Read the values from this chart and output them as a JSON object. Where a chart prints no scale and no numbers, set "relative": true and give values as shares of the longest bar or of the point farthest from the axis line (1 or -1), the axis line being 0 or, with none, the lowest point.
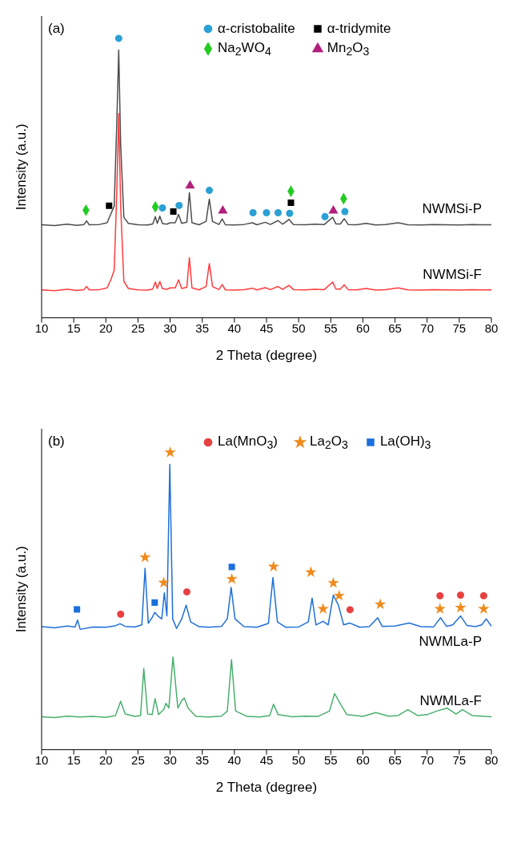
{
  "chart_data": [
    {
      "type": "line",
      "relative": true,
      "xlabel": "2 Theta (degree)",
      "ylabel": "Intensity (a.u.)",
      "annotations": [
        "(a)"
      ],
      "xlim": [
        10,
        80
      ],
      "xticks": [
        10,
        15,
        20,
        25,
        30,
        35,
        40,
        45,
        50,
        55,
        60,
        65,
        70,
        75,
        80
      ],
      "tick_labels": "x",
      "grid": false,
      "legend": "top right",
      "line_style": "solid",
      "series": [
        {
          "name": "NWMSi-P",
          "marker": "none",
          "color": "#4d4d4d",
          "x": [
            10,
            12,
            14,
            15.5,
            16.6,
            17,
            17.4,
            19,
            20.2,
            20.8,
            21.3,
            21.7,
            22,
            22.3,
            22.8,
            23.5,
            25,
            26.5,
            27.3,
            27.7,
            28,
            28.4,
            28.8,
            29.5,
            30,
            30.8,
            31.3,
            31.8,
            32.6,
            33,
            33.4,
            34.5,
            35.6,
            36.1,
            36.6,
            37.6,
            38.1,
            38.6,
            40,
            41.5,
            42.8,
            43.5,
            44.8,
            45.6,
            46.8,
            47.5,
            48.5,
            49.2,
            51,
            52.5,
            54,
            55.3,
            55.8,
            56.5,
            57.1,
            57.7,
            59,
            60.5,
            62,
            63.5,
            65.5,
            67,
            69,
            71,
            73,
            75,
            77,
            78.5,
            80
          ],
          "values": [
            0.333,
            0.33,
            0.335,
            0.331,
            0.334,
            0.347,
            0.333,
            0.334,
            0.34,
            0.373,
            0.4,
            0.7,
            0.958,
            0.62,
            0.36,
            0.338,
            0.333,
            0.332,
            0.336,
            0.362,
            0.338,
            0.364,
            0.337,
            0.335,
            0.34,
            0.34,
            0.37,
            0.338,
            0.342,
            0.448,
            0.34,
            0.333,
            0.345,
            0.425,
            0.345,
            0.334,
            0.354,
            0.333,
            0.332,
            0.334,
            0.34,
            0.333,
            0.342,
            0.334,
            0.348,
            0.335,
            0.352,
            0.334,
            0.333,
            0.335,
            0.334,
            0.36,
            0.336,
            0.336,
            0.355,
            0.334,
            0.333,
            0.338,
            0.332,
            0.334,
            0.34,
            0.333,
            0.332,
            0.334,
            0.333,
            0.332,
            0.334,
            0.333,
            0.333
          ]
        },
        {
          "name": "NWMSi-F",
          "marker": "none",
          "color": "#ff3b3b",
          "x": [
            10,
            12,
            14,
            15.5,
            16.6,
            17,
            17.4,
            19,
            20.2,
            20.8,
            21.3,
            21.7,
            22,
            22.3,
            22.8,
            23.5,
            25,
            26.5,
            27.3,
            27.7,
            28,
            28.4,
            28.8,
            29.5,
            30,
            30.8,
            31.3,
            31.8,
            32.6,
            33,
            33.4,
            34.5,
            35.6,
            36.1,
            36.6,
            37.6,
            38.1,
            38.6,
            40,
            41.5,
            42.8,
            43.5,
            44.8,
            45.6,
            46.8,
            47.5,
            48.5,
            49.2,
            51,
            52.5,
            54,
            55.3,
            55.8,
            56.5,
            57.1,
            57.7,
            59,
            60.5,
            62,
            63.5,
            65.5,
            67,
            69,
            71,
            73,
            75,
            77,
            78.5,
            80
          ],
          "values": [
            0.1,
            0.097,
            0.102,
            0.098,
            0.101,
            0.112,
            0.1,
            0.101,
            0.107,
            0.138,
            0.17,
            0.45,
            0.731,
            0.4,
            0.13,
            0.105,
            0.1,
            0.099,
            0.103,
            0.128,
            0.105,
            0.13,
            0.104,
            0.102,
            0.107,
            0.107,
            0.136,
            0.105,
            0.109,
            0.215,
            0.107,
            0.1,
            0.112,
            0.194,
            0.112,
            0.101,
            0.119,
            0.1,
            0.099,
            0.101,
            0.106,
            0.1,
            0.108,
            0.101,
            0.112,
            0.102,
            0.116,
            0.101,
            0.1,
            0.102,
            0.101,
            0.128,
            0.103,
            0.103,
            0.118,
            0.101,
            0.1,
            0.105,
            0.099,
            0.101,
            0.107,
            0.1,
            0.099,
            0.101,
            0.1,
            0.099,
            0.101,
            0.1,
            0.1
          ]
        },
        {
          "name": "α-cristobalite",
          "type": "scatter",
          "marker": "circle",
          "color": "#2aa0d4",
          "x": [
            22.0,
            28.8,
            31.4,
            36.1,
            42.9,
            45.0,
            46.8,
            48.6,
            54.1,
            57.2
          ],
          "values": [
            1.0,
            0.393,
            0.402,
            0.456,
            0.376,
            0.376,
            0.376,
            0.374,
            0.362,
            0.38
          ]
        },
        {
          "name": "α-tridymite",
          "type": "scatter",
          "marker": "square",
          "color": "#000000",
          "x": [
            20.5,
            30.5,
            48.8
          ],
          "values": [
            0.401,
            0.38,
            0.412
          ]
        },
        {
          "name": "Na$_{2}$WO$_{4}$",
          "type": "scatter",
          "marker": "diamond",
          "color": "#22cc22",
          "x": [
            16.9,
            27.7,
            48.8,
            57.0
          ],
          "values": [
            0.385,
            0.397,
            0.453,
            0.426
          ]
        },
        {
          "name": "Mn$_{2}$O$_{3}$",
          "type": "scatter",
          "marker": "triangle",
          "color": "#b0207a",
          "x": [
            33.1,
            38.2,
            55.4
          ],
          "values": [
            0.473,
            0.383,
            0.383
          ]
        }
      ]
    },
    {
      "type": "line",
      "relative": true,
      "xlabel": "2 Theta (degree)",
      "ylabel": "Intensity (a.u.)",
      "annotations": [
        "(b)"
      ],
      "xlim": [
        10,
        80
      ],
      "xticks": [
        10,
        15,
        20,
        25,
        30,
        35,
        40,
        45,
        50,
        55,
        60,
        65,
        70,
        75,
        80
      ],
      "tick_labels": "x",
      "grid": false,
      "legend": "top right",
      "line_style": "solid",
      "series": [
        {
          "name": "NWMLa-P",
          "marker": "none",
          "color": "#1f6fd6",
          "x": [
            10,
            12,
            14,
            15.2,
            15.6,
            16,
            18,
            20,
            21.5,
            22.2,
            23,
            24.5,
            25.6,
            26.1,
            26.6,
            27.2,
            27.6,
            28.2,
            28.7,
            29.1,
            29.5,
            29.95,
            30.4,
            31,
            31.8,
            32.5,
            33.2,
            34.5,
            36,
            38,
            38.9,
            39.5,
            40.1,
            41.5,
            43.5,
            45.3,
            46,
            46.7,
            48,
            50,
            51.5,
            52.1,
            52.7,
            53.8,
            54.6,
            55.4,
            56.2,
            57,
            58,
            59.5,
            61,
            62.3,
            63,
            65,
            67.2,
            69,
            71,
            72.1,
            73,
            74,
            75.2,
            76.2,
            77.5,
            78.5,
            79.2,
            80
          ],
          "values": [
            0.414,
            0.41,
            0.416,
            0.413,
            0.436,
            0.405,
            0.413,
            0.412,
            0.417,
            0.424,
            0.415,
            0.413,
            0.42,
            0.61,
            0.425,
            0.445,
            0.462,
            0.448,
            0.44,
            0.528,
            0.45,
            0.96,
            0.44,
            0.408,
            0.44,
            0.486,
            0.43,
            0.414,
            0.412,
            0.415,
            0.44,
            0.546,
            0.44,
            0.414,
            0.412,
            0.425,
            0.579,
            0.43,
            0.412,
            0.413,
            0.43,
            0.51,
            0.42,
            0.432,
            0.42,
            0.52,
            0.486,
            0.42,
            0.426,
            0.412,
            0.414,
            0.444,
            0.415,
            0.416,
            0.426,
            0.414,
            0.413,
            0.444,
            0.415,
            0.42,
            0.45,
            0.418,
            0.414,
            0.42,
            0.44,
            0.415
          ]
        },
        {
          "name": "NWMLa-F",
          "marker": "none",
          "color": "#4aaf6e",
          "x": [
            10,
            12,
            14,
            16,
            18,
            20,
            21.5,
            22.3,
            23,
            24.5,
            25.4,
            25.9,
            26.5,
            27.2,
            27.66,
            28.2,
            29,
            29.35,
            29.8,
            30.45,
            31.2,
            31.8,
            32.2,
            32.8,
            34,
            36,
            38,
            38.9,
            39.55,
            40.2,
            42,
            44,
            45.5,
            46.1,
            46.8,
            49,
            51,
            53,
            54.8,
            55.6,
            56.6,
            57.5,
            60,
            62,
            64,
            65.5,
            67,
            68.5,
            70,
            71.5,
            73.1,
            74.5,
            75.5,
            77,
            79,
            80
          ],
          "values": [
            0.111,
            0.108,
            0.113,
            0.11,
            0.112,
            0.109,
            0.115,
            0.163,
            0.12,
            0.112,
            0.115,
            0.273,
            0.12,
            0.118,
            0.172,
            0.118,
            0.135,
            0.156,
            0.14,
            0.312,
            0.14,
            0.165,
            0.174,
            0.14,
            0.112,
            0.11,
            0.113,
            0.13,
            0.303,
            0.13,
            0.112,
            0.11,
            0.115,
            0.153,
            0.118,
            0.111,
            0.113,
            0.112,
            0.13,
            0.189,
            0.15,
            0.118,
            0.112,
            0.125,
            0.113,
            0.115,
            0.135,
            0.115,
            0.118,
            0.13,
            0.14,
            0.12,
            0.135,
            0.115,
            0.112,
            0.111
          ]
        },
        {
          "name": "La(MnO$_{3}$)",
          "type": "scatter",
          "marker": "circle",
          "color": "#e84040",
          "x": [
            22.3,
            32.6,
            58.0,
            72.0,
            75.2,
            78.8
          ],
          "values": [
            0.456,
            0.531,
            0.471,
            0.518,
            0.52,
            0.518
          ]
        },
        {
          "name": "La$_{2}$O$_{3}$",
          "type": "scatter",
          "marker": "star",
          "color": "#f08a1c",
          "x": [
            26.1,
            29.0,
            30.0,
            39.6,
            46.1,
            51.9,
            53.8,
            55.4,
            56.3,
            62.7,
            72.0,
            75.2,
            78.8
          ],
          "values": [
            0.647,
            0.562,
            1.0,
            0.574,
            0.616,
            0.597,
            0.474,
            0.561,
            0.518,
            0.489,
            0.474,
            0.478,
            0.474
          ]
        },
        {
          "name": "La(OH)$_{3}$",
          "type": "scatter",
          "marker": "square",
          "color": "#1a6fdc",
          "x": [
            15.5,
            27.6,
            39.6
          ],
          "values": [
            0.472,
            0.495,
            0.615
          ]
        }
      ]
    }
  ]
}
